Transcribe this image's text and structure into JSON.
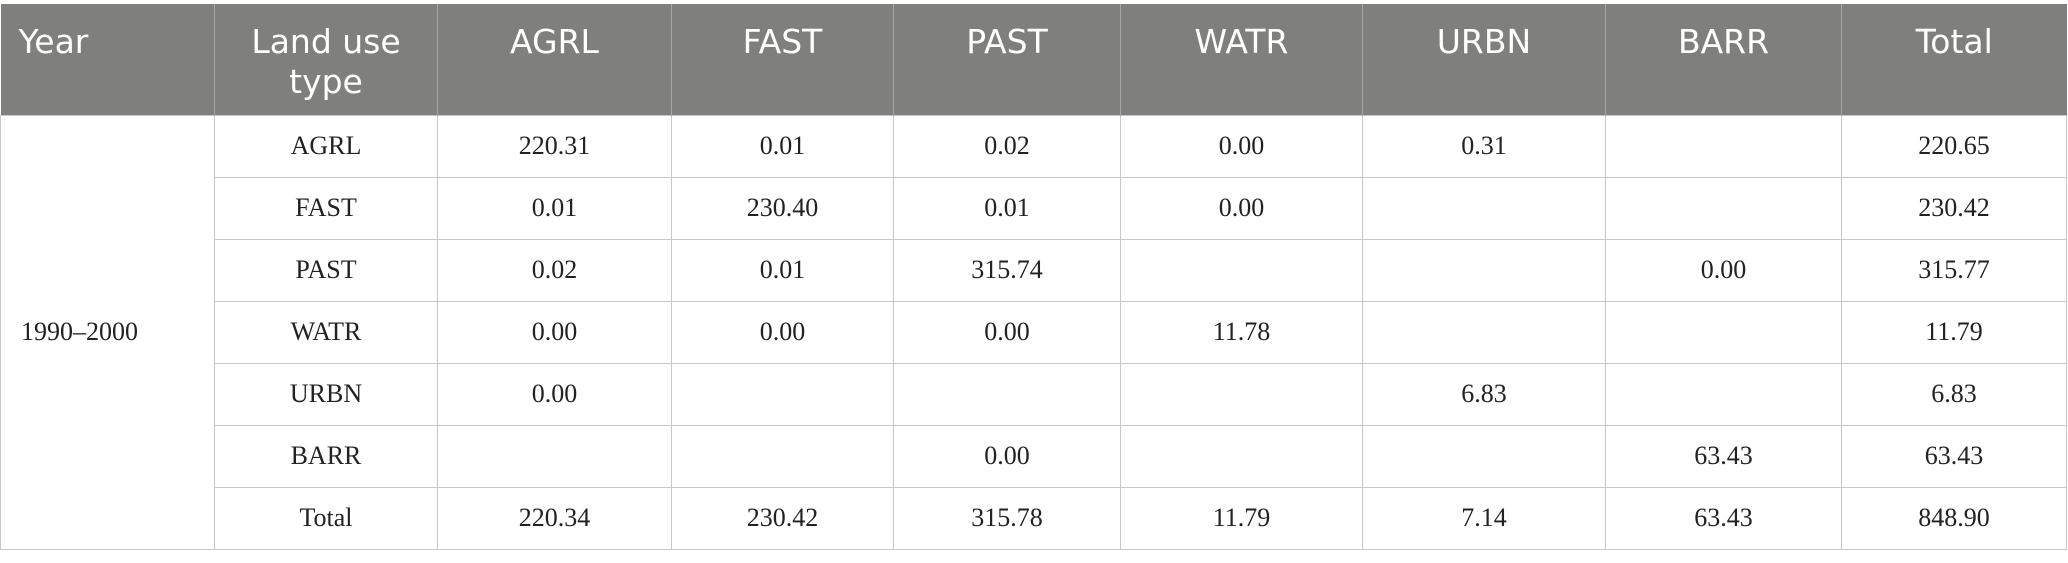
{
  "table": {
    "header": [
      "Year",
      "Land use type",
      "AGRL",
      "FAST",
      "PAST",
      "WATR",
      "URBN",
      "BARR",
      "Total"
    ],
    "year": "1990–2000",
    "rows": [
      [
        "AGRL",
        "220.31",
        "0.01",
        "0.02",
        "0.00",
        "0.31",
        null,
        "220.65"
      ],
      [
        "FAST",
        "0.01",
        "230.40",
        "0.01",
        "0.00",
        null,
        null,
        "230.42"
      ],
      [
        "PAST",
        "0.02",
        "0.01",
        "315.74",
        null,
        null,
        "0.00",
        "315.77"
      ],
      [
        "WATR",
        "0.00",
        "0.00",
        "0.00",
        "11.78",
        null,
        null,
        "11.79"
      ],
      [
        "URBN",
        "0.00",
        null,
        null,
        null,
        "6.83",
        null,
        "6.83"
      ],
      [
        "BARR",
        null,
        null,
        "0.00",
        null,
        null,
        "63.43",
        "63.43"
      ],
      [
        "Total",
        "220.34",
        "230.42",
        "315.78",
        "11.79",
        "7.14",
        "63.43",
        "848.90"
      ]
    ]
  }
}
